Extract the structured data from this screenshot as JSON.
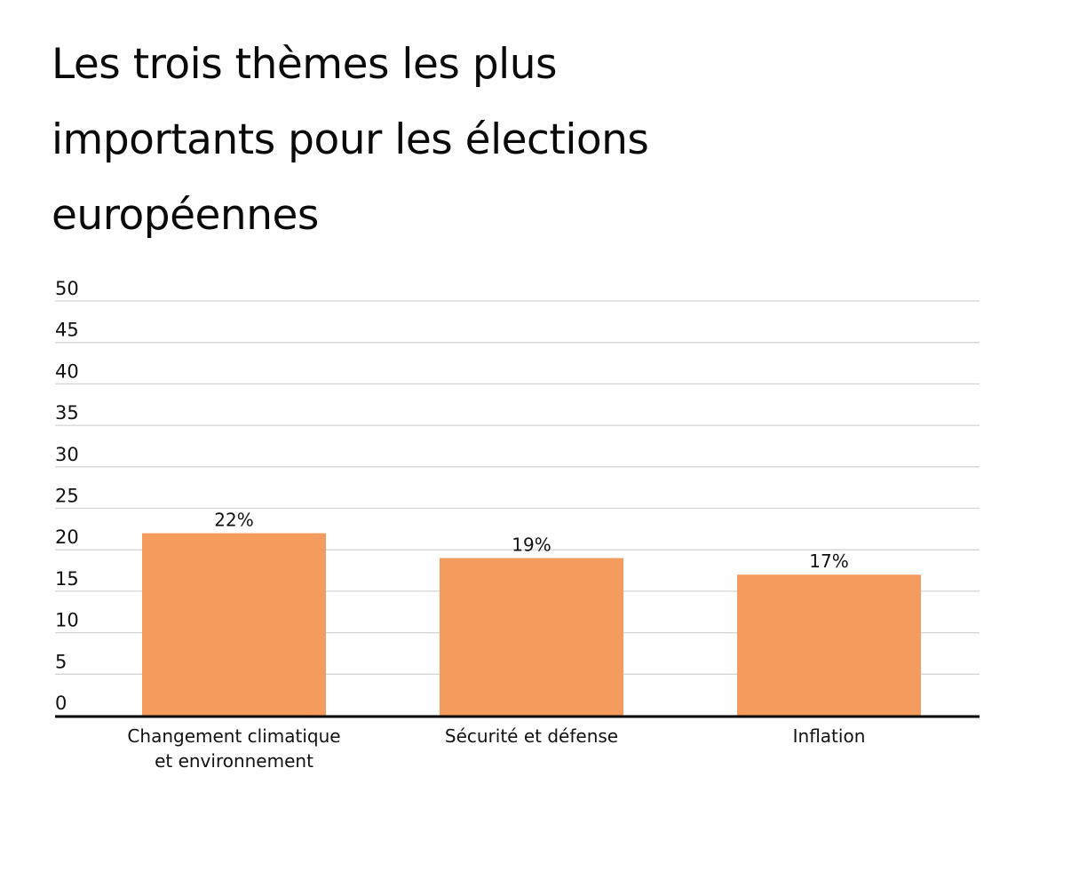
{
  "chart_data": {
    "type": "bar",
    "title": "Les trois thèmes les plus importants pour les élections européennes",
    "title_lines": [
      "Les trois thèmes les plus",
      "importants pour les élections",
      "européennes"
    ],
    "categories": [
      "Changement climatique et environnement",
      "Sécurité et défense",
      "Inflation"
    ],
    "category_lines": [
      [
        "Changement climatique",
        "et environnement"
      ],
      [
        "Sécurité et défense"
      ],
      [
        "Inflation"
      ]
    ],
    "values": [
      22,
      19,
      17
    ],
    "data_labels": [
      "22%",
      "19%",
      "17%"
    ],
    "xlabel": "",
    "ylabel": "",
    "ylim": [
      0,
      50
    ],
    "yticks": [
      "0",
      "5",
      "10",
      "15",
      "20",
      "25",
      "30",
      "35",
      "40",
      "45",
      "50"
    ],
    "grid": true,
    "legend": "none",
    "colors": {
      "bar": "#f49b5e",
      "grid": "#d4d4d4",
      "axis": "#000000"
    }
  }
}
